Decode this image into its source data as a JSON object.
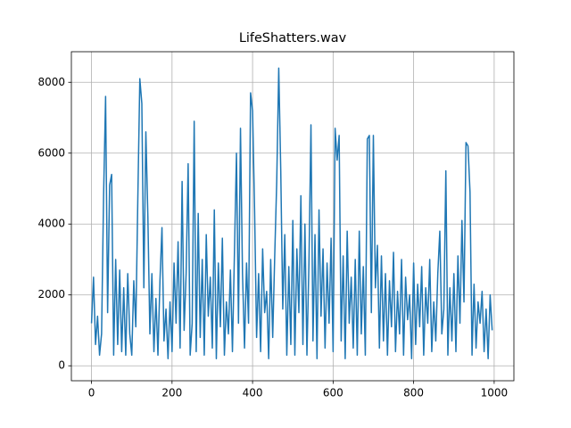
{
  "chart_data": {
    "type": "line",
    "title": "LifeShatters.wav",
    "x": [
      0,
      5,
      10,
      15,
      20,
      25,
      30,
      35,
      40,
      45,
      50,
      55,
      60,
      65,
      70,
      75,
      80,
      85,
      90,
      95,
      100,
      105,
      110,
      115,
      120,
      125,
      130,
      135,
      140,
      145,
      150,
      155,
      160,
      165,
      170,
      175,
      180,
      185,
      190,
      195,
      200,
      205,
      210,
      215,
      220,
      225,
      230,
      235,
      240,
      245,
      250,
      255,
      260,
      265,
      270,
      275,
      280,
      285,
      290,
      295,
      300,
      305,
      310,
      315,
      320,
      325,
      330,
      335,
      340,
      345,
      350,
      355,
      360,
      365,
      370,
      375,
      380,
      385,
      390,
      395,
      400,
      405,
      410,
      415,
      420,
      425,
      430,
      435,
      440,
      445,
      450,
      455,
      460,
      465,
      470,
      475,
      480,
      485,
      490,
      495,
      500,
      505,
      510,
      515,
      520,
      525,
      530,
      535,
      540,
      545,
      550,
      555,
      560,
      565,
      570,
      575,
      580,
      585,
      590,
      595,
      600,
      605,
      610,
      615,
      620,
      625,
      630,
      635,
      640,
      645,
      650,
      655,
      660,
      665,
      670,
      675,
      680,
      685,
      690,
      695,
      700,
      705,
      710,
      715,
      720,
      725,
      730,
      735,
      740,
      745,
      750,
      755,
      760,
      765,
      770,
      775,
      780,
      785,
      790,
      795,
      800,
      805,
      810,
      815,
      820,
      825,
      830,
      835,
      840,
      845,
      850,
      855,
      860,
      865,
      870,
      875,
      880,
      885,
      890,
      895,
      900,
      905,
      910,
      915,
      920,
      925,
      930,
      935,
      940,
      945,
      950,
      955,
      960,
      965,
      970,
      975,
      980,
      985,
      990,
      995
    ],
    "series": [
      {
        "color": "#1f77b4",
        "values": [
          1200,
          2500,
          600,
          1400,
          300,
          900,
          4800,
          7600,
          1500,
          5100,
          5400,
          300,
          3000,
          600,
          2700,
          400,
          2200,
          300,
          2600,
          900,
          300,
          2400,
          1100,
          4700,
          8100,
          7400,
          2200,
          6600,
          4200,
          900,
          2600,
          400,
          1900,
          300,
          2400,
          3900,
          700,
          1600,
          200,
          1800,
          400,
          2900,
          1200,
          3500,
          500,
          5200,
          1000,
          2600,
          5700,
          300,
          1200,
          6900,
          400,
          4300,
          800,
          3000,
          300,
          3700,
          1400,
          2500,
          500,
          4400,
          200,
          2900,
          1100,
          3600,
          300,
          1800,
          900,
          2700,
          400,
          3200,
          6000,
          1200,
          6700,
          2600,
          500,
          2900,
          1200,
          7700,
          7200,
          4400,
          800,
          2600,
          400,
          3300,
          1500,
          2100,
          200,
          3000,
          800,
          3100,
          5200,
          8400,
          5500,
          1600,
          3700,
          300,
          2800,
          600,
          4100,
          300,
          3300,
          1500,
          4800,
          600,
          4000,
          300,
          2900,
          6800,
          700,
          3700,
          200,
          4400,
          1400,
          3300,
          500,
          2900,
          1200,
          3600,
          400,
          6700,
          5800,
          6500,
          700,
          3100,
          200,
          3800,
          1200,
          2500,
          500,
          3000,
          300,
          3800,
          900,
          2800,
          300,
          6400,
          6500,
          1500,
          6500,
          2200,
          3400,
          500,
          3100,
          700,
          2600,
          300,
          2400,
          1100,
          3200,
          400,
          2100,
          900,
          3000,
          300,
          2500,
          1300,
          2000,
          200,
          2900,
          600,
          2300,
          1100,
          2800,
          300,
          2200,
          1200,
          3000,
          400,
          1800,
          700,
          2600,
          3800,
          900,
          1600,
          5500,
          300,
          2200,
          700,
          2600,
          400,
          3100,
          1200,
          4100,
          1800,
          6300,
          6200,
          4900,
          300,
          2300,
          500,
          1800,
          1200,
          2100,
          400,
          1600,
          200,
          2000,
          1000
        ]
      }
    ],
    "xlim": [
      -50,
      1049
    ],
    "ylim": [
      -422,
      8862
    ],
    "xticks": [
      0,
      200,
      400,
      600,
      800,
      1000
    ],
    "yticks": [
      0,
      2000,
      4000,
      6000,
      8000
    ],
    "grid": true
  }
}
